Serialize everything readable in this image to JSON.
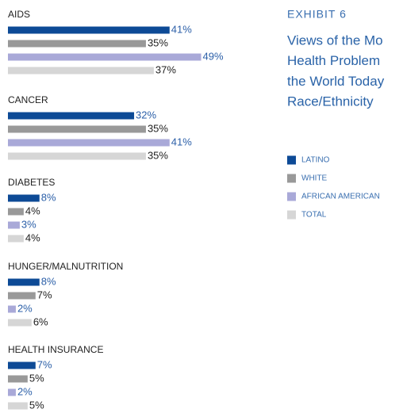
{
  "chart_data": {
    "type": "bar",
    "exhibit": "EXHIBIT 6",
    "title_lines": [
      "Views of the Mo",
      "Health Problem",
      "the World Today",
      "Race/Ethnicity"
    ],
    "categories": [
      "AIDS",
      "CANCER",
      "DIABETES",
      "HUNGER/MALNUTRITION",
      "HEALTH INSURANCE"
    ],
    "series": [
      {
        "name": "LATINO",
        "color": "#0d4a96",
        "values": [
          41,
          32,
          8,
          8,
          7
        ],
        "value_labels": [
          "41%",
          "32%",
          "8%",
          "8%",
          "7%"
        ]
      },
      {
        "name": "WHITE",
        "color": "#999999",
        "values": [
          35,
          35,
          4,
          7,
          5
        ],
        "value_labels": [
          "35%",
          "35%",
          "4%",
          "7%",
          "5%"
        ]
      },
      {
        "name": "AFRICAN AMERICAN",
        "color": "#a9a9d8",
        "values": [
          49,
          41,
          3,
          2,
          2
        ],
        "value_labels": [
          "49%",
          "41%",
          "3%",
          "2%",
          "2%"
        ]
      },
      {
        "name": "TOTAL",
        "color": "#d6d6d6",
        "values": [
          37,
          35,
          4,
          6,
          5
        ],
        "value_labels": [
          "37%",
          "35%",
          "4%",
          "6%",
          "5%"
        ]
      }
    ]
  }
}
